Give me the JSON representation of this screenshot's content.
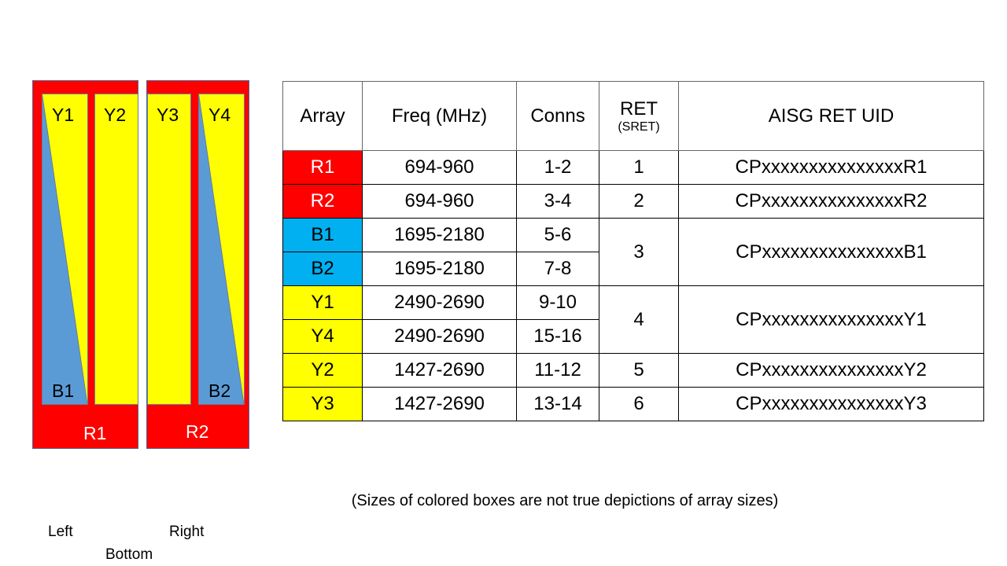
{
  "diagram": {
    "left_panel": {
      "labels": {
        "y1": "Y1",
        "y2": "Y2",
        "b1": "B1",
        "r1": "R1"
      }
    },
    "right_panel": {
      "labels": {
        "y3": "Y3",
        "y4": "Y4",
        "b2": "B2",
        "r2": "R2"
      }
    },
    "orientation": {
      "left": "Left",
      "right": "Right",
      "bottom": "Bottom"
    },
    "colors": {
      "red": "#ff0000",
      "yellow": "#ffff00",
      "blue": "#5b9bd5",
      "table_blue": "#00b0f0"
    }
  },
  "table": {
    "headers": {
      "array": "Array",
      "freq": "Freq (MHz)",
      "conns": "Conns",
      "ret": "RET",
      "ret_sub": "(SRET)",
      "uid": "AISG RET UID"
    },
    "rows": [
      {
        "array": "R1",
        "freq": "694-960",
        "conns": "1-2",
        "ret": "1",
        "uid": "CPxxxxxxxxxxxxxxxR1"
      },
      {
        "array": "R2",
        "freq": "694-960",
        "conns": "3-4",
        "ret": "2",
        "uid": "CPxxxxxxxxxxxxxxxR2"
      },
      {
        "array": "B1",
        "freq": "1695-2180",
        "conns": "5-6",
        "ret": "3",
        "uid": "CPxxxxxxxxxxxxxxxB1"
      },
      {
        "array": "B2",
        "freq": "1695-2180",
        "conns": "7-8"
      },
      {
        "array": "Y1",
        "freq": "2490-2690",
        "conns": "9-10",
        "ret": "4",
        "uid": "CPxxxxxxxxxxxxxxxY1"
      },
      {
        "array": "Y4",
        "freq": "2490-2690",
        "conns": "15-16"
      },
      {
        "array": "Y2",
        "freq": "1427-2690",
        "conns": "11-12",
        "ret": "5",
        "uid": "CPxxxxxxxxxxxxxxxY2"
      },
      {
        "array": "Y3",
        "freq": "1427-2690",
        "conns": "13-14",
        "ret": "6",
        "uid": "CPxxxxxxxxxxxxxxxY3"
      }
    ]
  },
  "note": "(Sizes of colored boxes are not true depictions of array sizes)"
}
